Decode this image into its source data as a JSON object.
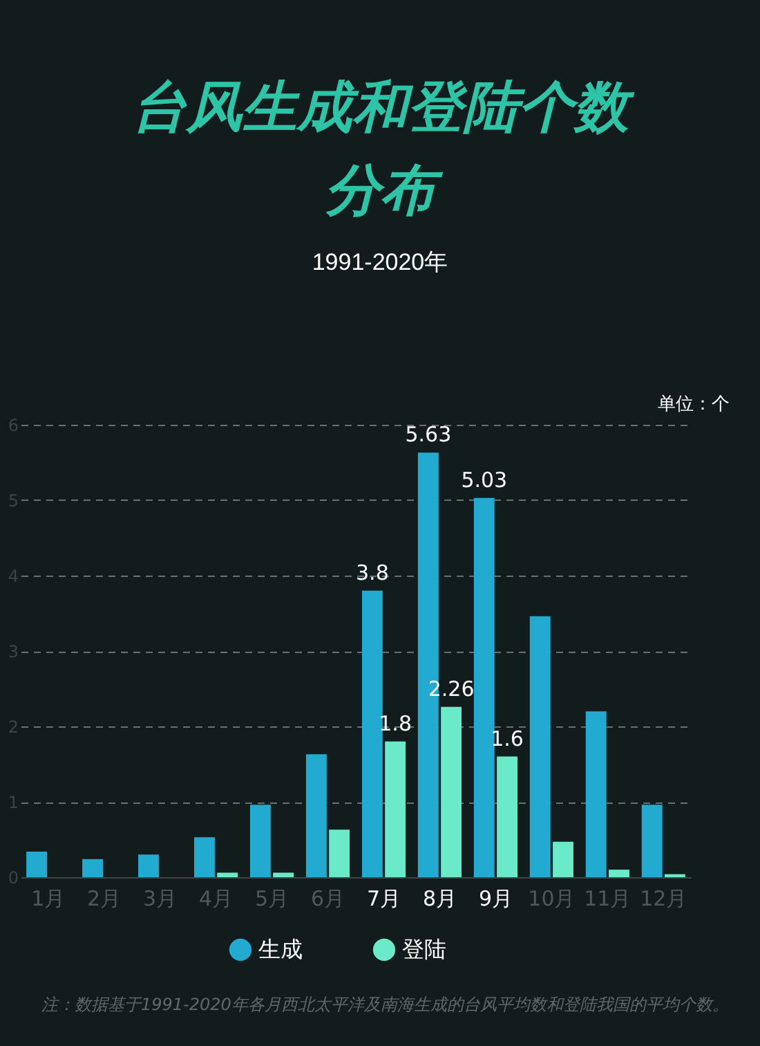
{
  "chart_data": {
    "type": "bar",
    "title": "台风生成和登陆个数分布",
    "subtitle": "1991-2020年",
    "categories": [
      "1月",
      "2月",
      "3月",
      "4月",
      "5月",
      "6月",
      "7月",
      "8月",
      "9月",
      "10月",
      "11月",
      "12月"
    ],
    "series": [
      {
        "name": "生成",
        "color": "#22aad0",
        "values": [
          0.34,
          0.24,
          0.3,
          0.53,
          0.96,
          1.63,
          3.8,
          5.63,
          5.03,
          3.46,
          2.2,
          0.96
        ],
        "value_labels": [
          null,
          null,
          null,
          null,
          null,
          null,
          "3.8",
          "5.63",
          "5.03",
          null,
          null,
          null
        ]
      },
      {
        "name": "登陆",
        "color": "#6aeac8",
        "values": [
          0,
          0,
          0,
          0.06,
          0.06,
          0.63,
          1.8,
          2.26,
          1.6,
          0.47,
          0.1,
          0.04
        ],
        "value_labels": [
          null,
          null,
          null,
          null,
          null,
          null,
          "1.8",
          "2.26",
          "1.6",
          null,
          null,
          null
        ]
      }
    ],
    "ylim": [
      0,
      6
    ],
    "yticks": [
      0,
      1,
      2,
      3,
      4,
      5,
      6
    ],
    "grid": "y",
    "legend": "bottom",
    "annotations": [
      "单位：个",
      "注：数据基于1991-2020年各月西北太平洋及南海生成的台风平均数和登陆我国的平均个数。"
    ]
  }
}
